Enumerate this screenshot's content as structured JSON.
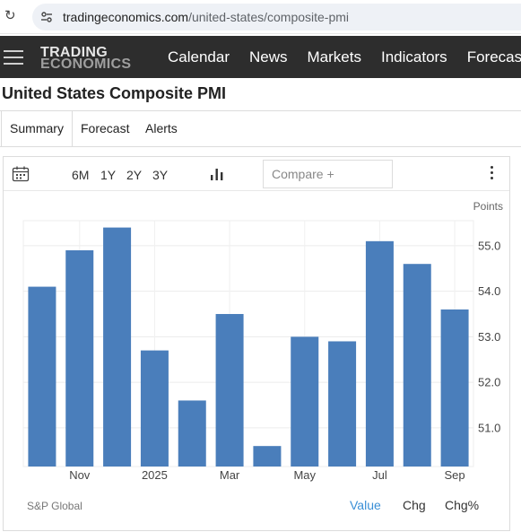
{
  "browser": {
    "url_domain": "tradingeconomics.com",
    "url_path": "/united-states/composite-pmi"
  },
  "nav": {
    "logo_line1": "TRADING",
    "logo_line2": "ECONOMICS",
    "items": [
      "Calendar",
      "News",
      "Markets",
      "Indicators",
      "Forecast"
    ]
  },
  "page": {
    "title": "United States Composite PMI"
  },
  "tabs": [
    "Summary",
    "Forecast",
    "Alerts"
  ],
  "toolbar": {
    "ranges": [
      "6M",
      "1Y",
      "2Y",
      "3Y"
    ],
    "compare_placeholder": "Compare +"
  },
  "footer": {
    "source": "S&P Global",
    "value_btn": "Value",
    "chg_btn": "Chg",
    "chgpct_btn": "Chg%"
  },
  "colors": {
    "bar": "#4a7ebb",
    "nav_bg": "#2d2d2d",
    "active_link": "#3a8fd6"
  },
  "chart_data": {
    "type": "bar",
    "unit_label": "Points",
    "categories": [
      "Oct 2024",
      "Nov 2024",
      "Dec 2024",
      "Jan 2025",
      "Feb 2025",
      "Mar 2025",
      "Apr 2025",
      "May 2025",
      "Jun 2025",
      "Jul 2025",
      "Aug 2025",
      "Sep 2025"
    ],
    "values": [
      54.1,
      54.9,
      55.4,
      52.7,
      51.6,
      53.5,
      50.6,
      53.0,
      52.9,
      55.1,
      54.6,
      53.6
    ],
    "x_tick_labels": [
      {
        "index": 1,
        "label": "Nov"
      },
      {
        "index": 3,
        "label": "2025"
      },
      {
        "index": 5,
        "label": "Mar"
      },
      {
        "index": 7,
        "label": "May"
      },
      {
        "index": 9,
        "label": "Jul"
      },
      {
        "index": 11,
        "label": "Sep"
      }
    ],
    "y_ticks": [
      "51.0",
      "52.0",
      "53.0",
      "54.0",
      "55.0"
    ],
    "ylim": [
      50.15,
      55.55
    ],
    "y_axis_position": "right",
    "grid": true
  }
}
